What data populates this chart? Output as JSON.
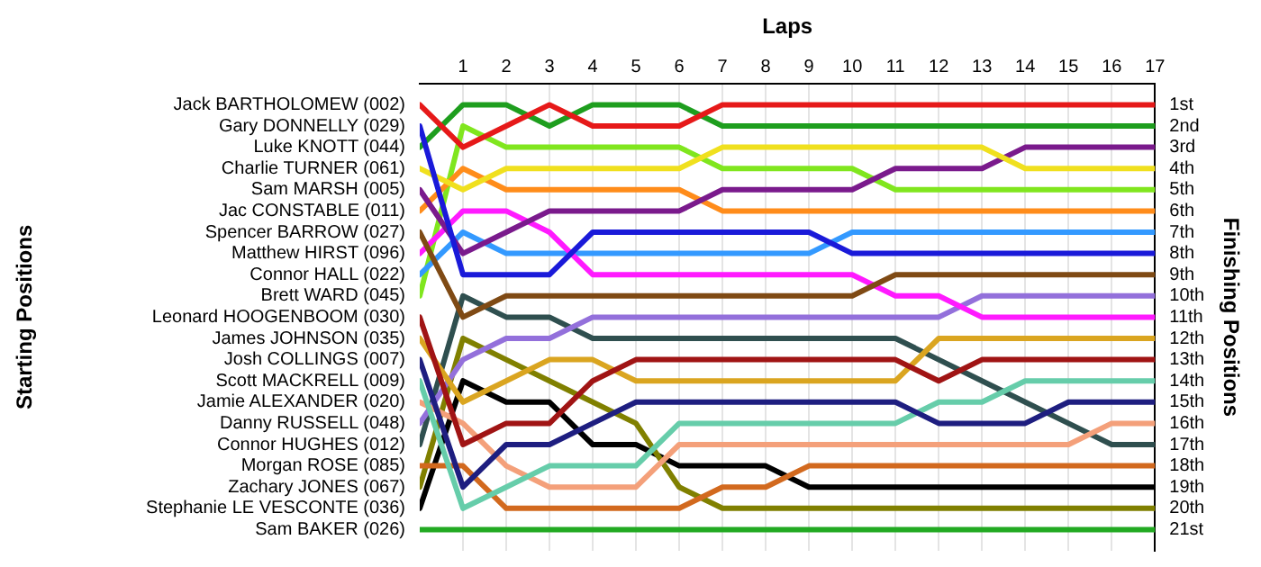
{
  "chart_data": {
    "type": "line",
    "xlabel": "Laps",
    "ylabel": "Finishing Positions",
    "annotations": [
      "Starting Positions"
    ],
    "x": [
      0,
      1,
      2,
      3,
      4,
      5,
      6,
      7,
      8,
      9,
      10,
      11,
      12,
      13,
      14,
      15,
      16,
      17
    ],
    "xlim": [
      0,
      17
    ],
    "xticks": [
      1,
      2,
      3,
      4,
      5,
      6,
      7,
      8,
      9,
      10,
      11,
      12,
      13,
      14,
      15,
      16,
      17
    ],
    "ylim": [
      22,
      0
    ],
    "yticks": [
      {
        "value": 1,
        "label": "1st"
      },
      {
        "value": 2,
        "label": "2nd"
      },
      {
        "value": 3,
        "label": "3rd"
      },
      {
        "value": 4,
        "label": "4th"
      },
      {
        "value": 5,
        "label": "5th"
      },
      {
        "value": 6,
        "label": "6th"
      },
      {
        "value": 7,
        "label": "7th"
      },
      {
        "value": 8,
        "label": "8th"
      },
      {
        "value": 9,
        "label": "9th"
      },
      {
        "value": 10,
        "label": "10th"
      },
      {
        "value": 11,
        "label": "11th"
      },
      {
        "value": 12,
        "label": "12th"
      },
      {
        "value": 13,
        "label": "13th"
      },
      {
        "value": 14,
        "label": "14th"
      },
      {
        "value": 15,
        "label": "15th"
      },
      {
        "value": 16,
        "label": "16th"
      },
      {
        "value": 17,
        "label": "17th"
      },
      {
        "value": 18,
        "label": "18th"
      },
      {
        "value": 19,
        "label": "19th"
      },
      {
        "value": 20,
        "label": "20th"
      },
      {
        "value": 21,
        "label": "21st"
      }
    ],
    "grid": "x",
    "legend": false,
    "marker": "none",
    "line_style": "solid",
    "series": [
      {
        "name": "Jack BARTHOLOMEW (002)",
        "color": "#e61919",
        "values": [
          1,
          3,
          2,
          1,
          2,
          2,
          2,
          1,
          1,
          1,
          1,
          1,
          1,
          1,
          1,
          1,
          1,
          1
        ]
      },
      {
        "name": "Gary DONNELLY (029)",
        "color": "#1a1ad9",
        "values": [
          2,
          9,
          9,
          9,
          7,
          7,
          7,
          7,
          7,
          7,
          8,
          8,
          8,
          8,
          8,
          8,
          8,
          8
        ]
      },
      {
        "name": "Luke KNOTT (044)",
        "color": "#1e9e1e",
        "values": [
          3,
          1,
          1,
          2,
          1,
          1,
          1,
          2,
          2,
          2,
          2,
          2,
          2,
          2,
          2,
          2,
          2,
          2
        ]
      },
      {
        "name": "Charlie TURNER (061)",
        "color": "#f0e01e",
        "values": [
          4,
          5,
          4,
          4,
          4,
          4,
          4,
          3,
          3,
          3,
          3,
          3,
          3,
          3,
          4,
          4,
          4,
          4
        ]
      },
      {
        "name": "Sam MARSH (005)",
        "color": "#7a1a8c",
        "values": [
          5,
          8,
          7,
          6,
          6,
          6,
          6,
          5,
          5,
          5,
          5,
          4,
          4,
          4,
          3,
          3,
          3,
          3
        ]
      },
      {
        "name": "Jac CONSTABLE (011)",
        "color": "#ff8c1a",
        "values": [
          6,
          4,
          5,
          5,
          5,
          5,
          5,
          6,
          6,
          6,
          6,
          6,
          6,
          6,
          6,
          6,
          6,
          6
        ]
      },
      {
        "name": "Spencer BARROW (027)",
        "color": "#7f4a14",
        "values": [
          7,
          11,
          10,
          10,
          10,
          10,
          10,
          10,
          10,
          10,
          10,
          9,
          9,
          9,
          9,
          9,
          9,
          9
        ]
      },
      {
        "name": "Matthew HIRST (096)",
        "color": "#ff1aff",
        "values": [
          8,
          6,
          6,
          7,
          9,
          9,
          9,
          9,
          9,
          9,
          9,
          10,
          10,
          11,
          11,
          11,
          11,
          11
        ]
      },
      {
        "name": "Connor HALL (022)",
        "color": "#3399ff",
        "values": [
          9,
          7,
          8,
          8,
          8,
          8,
          8,
          8,
          8,
          8,
          7,
          7,
          7,
          7,
          7,
          7,
          7,
          7
        ]
      },
      {
        "name": "Brett WARD (045)",
        "color": "#80e61e",
        "values": [
          10,
          2,
          3,
          3,
          3,
          3,
          3,
          4,
          4,
          4,
          4,
          5,
          5,
          5,
          5,
          5,
          5,
          5
        ]
      },
      {
        "name": "Leonard HOOGENBOOM (030)",
        "color": "#a01414",
        "values": [
          11,
          17,
          16,
          16,
          14,
          13,
          13,
          13,
          13,
          13,
          13,
          13,
          14,
          13,
          13,
          13,
          13,
          13
        ]
      },
      {
        "name": "James JOHNSON (035)",
        "color": "#daa520",
        "values": [
          12,
          15,
          14,
          13,
          13,
          14,
          14,
          14,
          14,
          14,
          14,
          14,
          12,
          12,
          12,
          12,
          12,
          12
        ]
      },
      {
        "name": "Josh COLLINGS (007)",
        "color": "#1e1e80",
        "values": [
          13,
          19,
          17,
          17,
          16,
          15,
          15,
          15,
          15,
          15,
          15,
          15,
          16,
          16,
          16,
          15,
          15,
          15
        ]
      },
      {
        "name": "Scott MACKRELL (009)",
        "color": "#66cdaa",
        "values": [
          14,
          20,
          19,
          18,
          18,
          18,
          16,
          16,
          16,
          16,
          16,
          16,
          15,
          15,
          14,
          14,
          14,
          14
        ]
      },
      {
        "name": "Jamie ALEXANDER (020)",
        "color": "#f4a07a",
        "values": [
          15,
          16,
          18,
          19,
          19,
          19,
          17,
          17,
          17,
          17,
          17,
          17,
          17,
          17,
          17,
          17,
          16,
          16
        ]
      },
      {
        "name": "Danny RUSSELL (048)",
        "color": "#9370db",
        "values": [
          16,
          13,
          12,
          12,
          11,
          11,
          11,
          11,
          11,
          11,
          11,
          11,
          11,
          10,
          10,
          10,
          10,
          10
        ]
      },
      {
        "name": "Connor HUGHES (012)",
        "color": "#2f4f4f",
        "values": [
          17,
          10,
          11,
          11,
          12,
          12,
          12,
          12,
          12,
          12,
          12,
          12,
          13,
          14,
          15,
          16,
          17,
          17
        ]
      },
      {
        "name": "Morgan ROSE (085)",
        "color": "#d2691e",
        "values": [
          18,
          18,
          20,
          20,
          20,
          20,
          20,
          19,
          19,
          18,
          18,
          18,
          18,
          18,
          18,
          18,
          18,
          18
        ]
      },
      {
        "name": "Zachary JONES (067)",
        "color": "#808000",
        "values": [
          19,
          12,
          13,
          14,
          15,
          16,
          19,
          20,
          20,
          20,
          20,
          20,
          20,
          20,
          20,
          20,
          20,
          20
        ]
      },
      {
        "name": "Stephanie LE VESCONTE (036)",
        "color": "#000000",
        "values": [
          20,
          14,
          15,
          15,
          17,
          17,
          18,
          18,
          18,
          19,
          19,
          19,
          19,
          19,
          19,
          19,
          19,
          19
        ]
      },
      {
        "name": "Sam BAKER (026)",
        "color": "#22aa22",
        "values": [
          21,
          21,
          21,
          21,
          21,
          21,
          21,
          21,
          21,
          21,
          21,
          21,
          21,
          21,
          21,
          21,
          21,
          21
        ]
      }
    ]
  }
}
